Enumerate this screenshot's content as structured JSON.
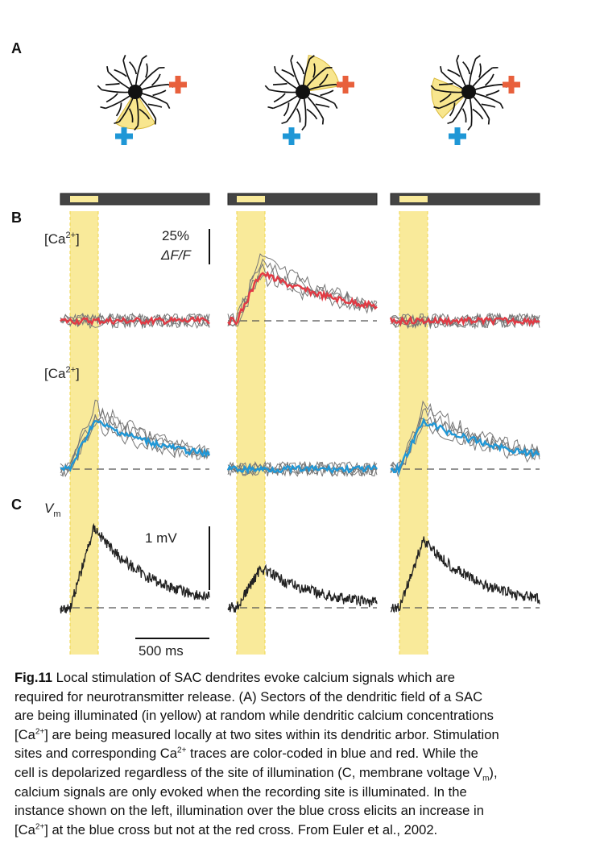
{
  "panels": {
    "a": "A",
    "b": "B",
    "c": "C"
  },
  "labels": {
    "ca_main": "[Ca",
    "ca_sup": "2+",
    "ca_close": "]",
    "scale_pct": "25%",
    "scale_dff": "ΔF/F",
    "vm_main": "V",
    "vm_sub": "m",
    "scale_mv": "1 mV",
    "scale_ms": "500 ms"
  },
  "colors": {
    "highlight": "#f9ea9a",
    "red_trace": "#e23a44",
    "blue_trace": "#1f97d6",
    "red_cross": "#e8603c",
    "blue_cross": "#1f97d6",
    "gray_trace": "#777777",
    "vm_trace": "#222222"
  },
  "caption": {
    "title": "Fig.11",
    "l1": " Local stimulation of SAC dendrites evoke calcium signals which are",
    "l2": "required for neurotransmitter release. (A) Sectors of the dendritic field of a SAC",
    "l3": "are being illuminated (in yellow) at random while dendritic calcium concentrations",
    "l4a": "[Ca",
    "l4sup": "2+",
    "l4b": "] are being measured locally at two sites within its dendritic arbor. Stimulation",
    "l5a": "sites and corresponding Ca",
    "l5sup": "2+",
    "l5b": " traces are color-coded in blue and red. While the",
    "l6a": "cell is depolarized regardless of the site of illumination (C, membrane voltage V",
    "l6sub": "m",
    "l6b": "),",
    "l7": "calcium signals are only evoked when the recording site is illuminated. In the",
    "l8": "instance shown on the left, illumination over the blue cross elicits an increase in",
    "l9a": "[Ca",
    "l9sup": "2+",
    "l9b": "] at the blue cross but not at the red cross. From Euler et al., 2002."
  }
}
